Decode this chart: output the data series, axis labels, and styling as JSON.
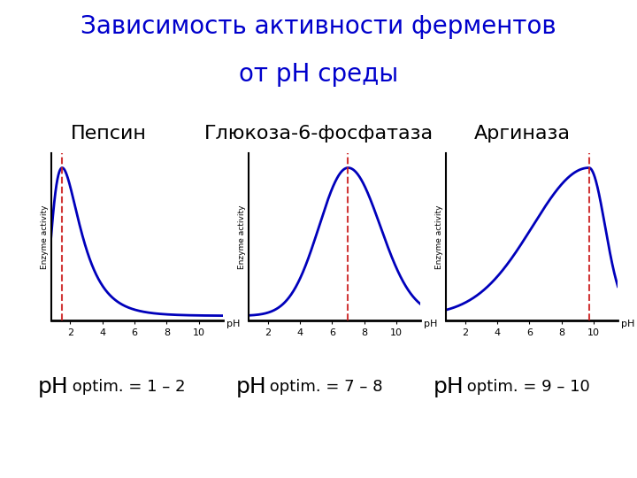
{
  "title_line1": "Зависимость активности ферментов",
  "title_line2": "от pH среды",
  "title_color": "#0000CC",
  "title_fontsize": 20,
  "background_color": "#FFFFFF",
  "enzymes": [
    {
      "name": "Пепсин",
      "ph_optim": 1.5,
      "ph_label_big": "pH",
      "ph_label_small": " optim. = 1 – 2",
      "curve_peak": 1.5,
      "curve_color": "#0000BB",
      "dashed_color": "#CC2222",
      "xlabel_ticks": [
        2,
        4,
        6,
        8,
        10
      ],
      "xlim": [
        0.8,
        11.5
      ]
    },
    {
      "name": "Глюкоза-6-фосфатаза",
      "ph_optim": 7.0,
      "ph_label_big": "pH",
      "ph_label_small": " optim. = 7 – 8",
      "curve_peak": 7.0,
      "curve_color": "#0000BB",
      "dashed_color": "#CC2222",
      "xlabel_ticks": [
        2,
        4,
        6,
        8,
        10
      ],
      "xlim": [
        0.8,
        11.5
      ]
    },
    {
      "name": "Аргиназа",
      "ph_optim": 9.7,
      "ph_label_big": "pH",
      "ph_label_small": " optim. = 9 – 10",
      "curve_peak": 9.7,
      "curve_color": "#0000BB",
      "dashed_color": "#CC2222",
      "xlabel_ticks": [
        2,
        4,
        6,
        8,
        10
      ],
      "xlim": [
        0.8,
        11.5
      ]
    }
  ],
  "enzyme_name_fontsize": 16,
  "ph_big_fontsize": 18,
  "ph_small_fontsize": 13,
  "axis_ylabel_fontsize": 6.5,
  "tick_fontsize": 8
}
